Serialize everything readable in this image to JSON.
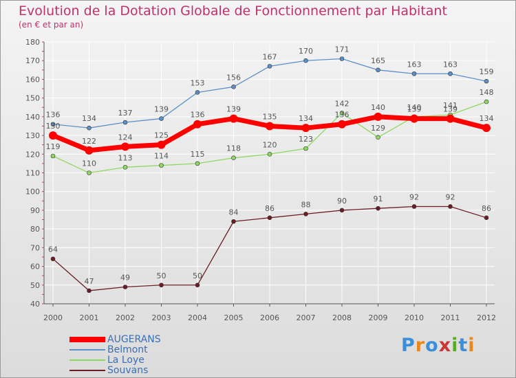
{
  "title": "Evolution de la Dotation Globale de Fonctionnement par Habitant",
  "subtitle": "(en € et par an)",
  "logo_text": "Proxiti",
  "colors": {
    "title": "#c0306b",
    "axis": "#555555",
    "grid": "#ffffff",
    "legend_text": "#3a6eb5"
  },
  "chart_data": {
    "type": "line",
    "title": "Evolution de la Dotation Globale de Fonctionnement par Habitant",
    "subtitle": "(en € et par an)",
    "x": [
      "2000",
      "2001",
      "2002",
      "2003",
      "2004",
      "2005",
      "2006",
      "2007",
      "2008",
      "2009",
      "2010",
      "2011",
      "2012"
    ],
    "yticks": [
      40,
      50,
      60,
      70,
      80,
      90,
      100,
      110,
      120,
      130,
      140,
      150,
      160,
      170,
      180
    ],
    "ylim": [
      40,
      180
    ],
    "grid": true,
    "legend_position": "bottom-left",
    "series": [
      {
        "name": "AUGERANS",
        "color": "#ff0000",
        "width": 7,
        "values": [
          130,
          122,
          124,
          125,
          136,
          139,
          135,
          134,
          136,
          140,
          139,
          139,
          134
        ]
      },
      {
        "name": "Belmont",
        "color": "#5b8fc6",
        "width": 1.3,
        "values": [
          136,
          134,
          137,
          139,
          153,
          156,
          167,
          170,
          171,
          165,
          163,
          163,
          159
        ]
      },
      {
        "name": "La Loye",
        "color": "#8fd860",
        "width": 1.3,
        "values": [
          119,
          110,
          113,
          114,
          115,
          118,
          120,
          123,
          142,
          129,
          140,
          141,
          148
        ]
      },
      {
        "name": "Souvans",
        "color": "#6b1c24",
        "width": 1.3,
        "values": [
          64,
          47,
          49,
          50,
          50,
          84,
          86,
          88,
          90,
          91,
          92,
          92,
          86
        ]
      }
    ]
  }
}
